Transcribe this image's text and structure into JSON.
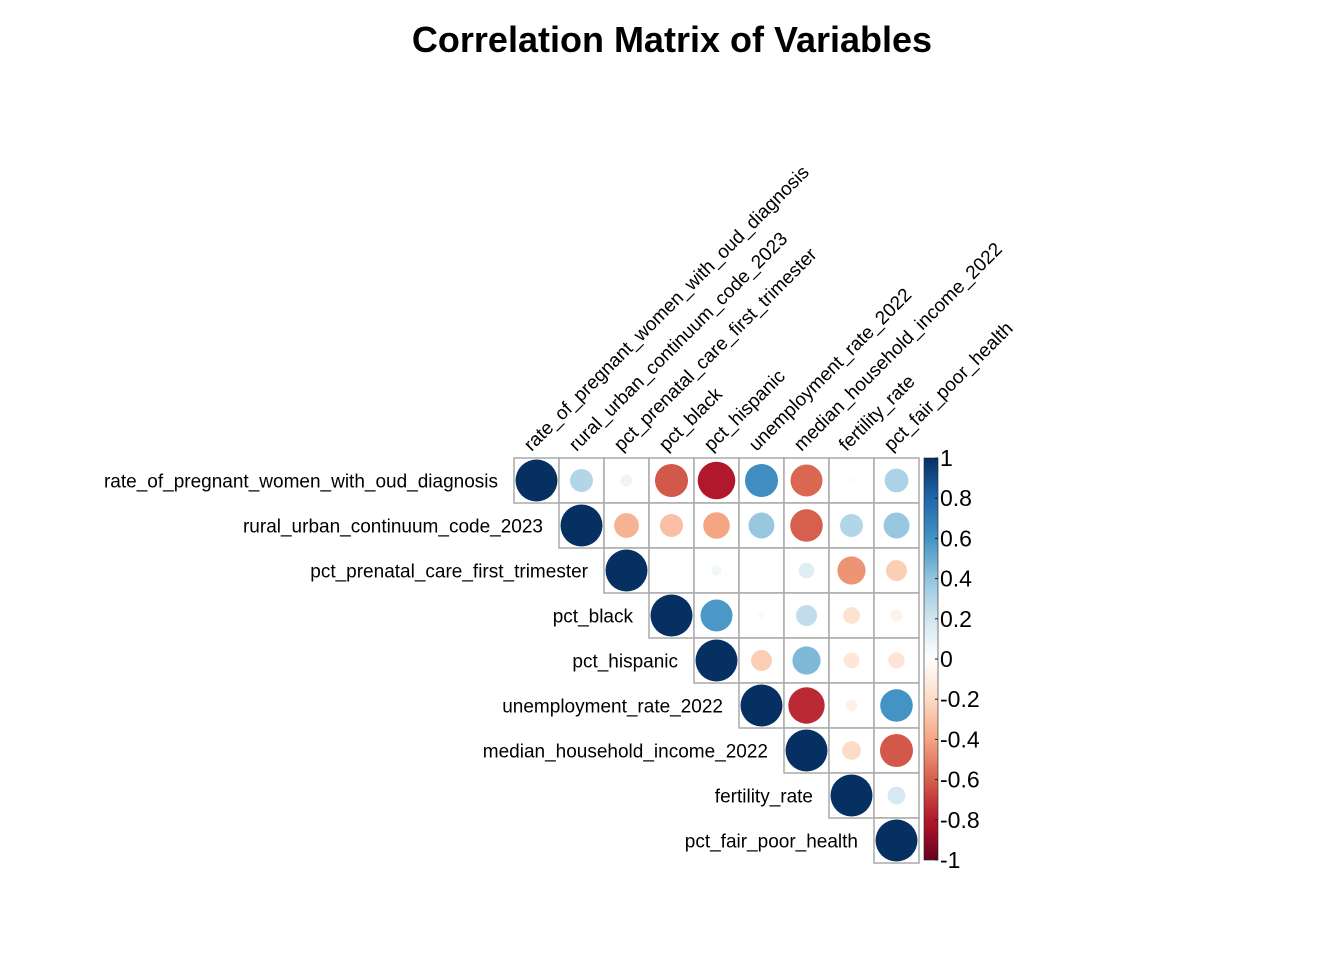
{
  "chart_data": {
    "type": "heatmap",
    "subtype": "correlation-upper-triangle-circles",
    "title": "Correlation Matrix of Variables",
    "variables": [
      "rate_of_pregnant_women_with_oud_diagnosis",
      "rural_urban_continuum_code_2023",
      "pct_prenatal_care_first_trimester",
      "pct_black",
      "pct_hispanic",
      "unemployment_rate_2022",
      "median_household_income_2022",
      "fertility_rate",
      "pct_fair_poor_health"
    ],
    "matrix": [
      [
        1.0,
        0.3,
        0.08,
        -0.62,
        -0.8,
        0.62,
        -0.58,
        0.02,
        0.32
      ],
      [
        0.3,
        1.0,
        -0.35,
        -0.3,
        -0.4,
        0.38,
        -0.6,
        0.3,
        0.38
      ],
      [
        0.08,
        -0.35,
        1.0,
        0.0,
        0.06,
        0.0,
        0.14,
        -0.45,
        -0.25
      ],
      [
        -0.62,
        -0.3,
        0.0,
        1.0,
        0.58,
        0.03,
        0.25,
        -0.16,
        -0.08
      ],
      [
        -0.8,
        -0.4,
        0.06,
        0.58,
        1.0,
        -0.25,
        0.45,
        -0.14,
        -0.15
      ],
      [
        0.62,
        0.38,
        0.0,
        0.03,
        -0.25,
        1.0,
        -0.75,
        -0.08,
        0.6
      ],
      [
        -0.58,
        -0.6,
        0.14,
        0.25,
        0.45,
        -0.75,
        1.0,
        -0.2,
        -0.62
      ],
      [
        0.02,
        0.3,
        -0.45,
        -0.16,
        -0.14,
        -0.08,
        -0.2,
        1.0,
        0.18
      ],
      [
        0.32,
        0.38,
        -0.25,
        -0.08,
        -0.15,
        0.6,
        -0.62,
        0.18,
        1.0
      ]
    ],
    "color_scale": {
      "range": [
        -1,
        1
      ],
      "ticks": [
        "1",
        "0.8",
        "0.6",
        "0.4",
        "0.2",
        "0",
        "-0.2",
        "-0.4",
        "-0.6",
        "-0.8",
        "-1"
      ],
      "colors": [
        "#67001F",
        "#B2182B",
        "#D6604D",
        "#F4A582",
        "#FDDBC7",
        "#FFFFFF",
        "#D1E5F0",
        "#92C5DE",
        "#4393C3",
        "#2166AC",
        "#053061"
      ]
    },
    "grid_color": "#AAAAAA",
    "legend": "right"
  }
}
